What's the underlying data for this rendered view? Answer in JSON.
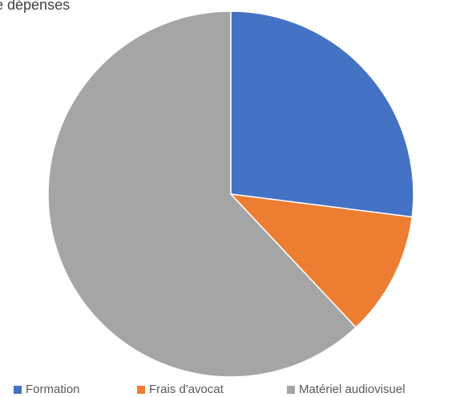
{
  "chart_data": {
    "type": "pie",
    "title": "e dépenses",
    "categories": [
      "Formation",
      "Frais d'avocat",
      "Matériel audiovisuel"
    ],
    "values": [
      27,
      11,
      62
    ],
    "colors": [
      "#4472C4",
      "#ED7D31",
      "#A5A5A5"
    ],
    "legend_position": "bottom"
  }
}
